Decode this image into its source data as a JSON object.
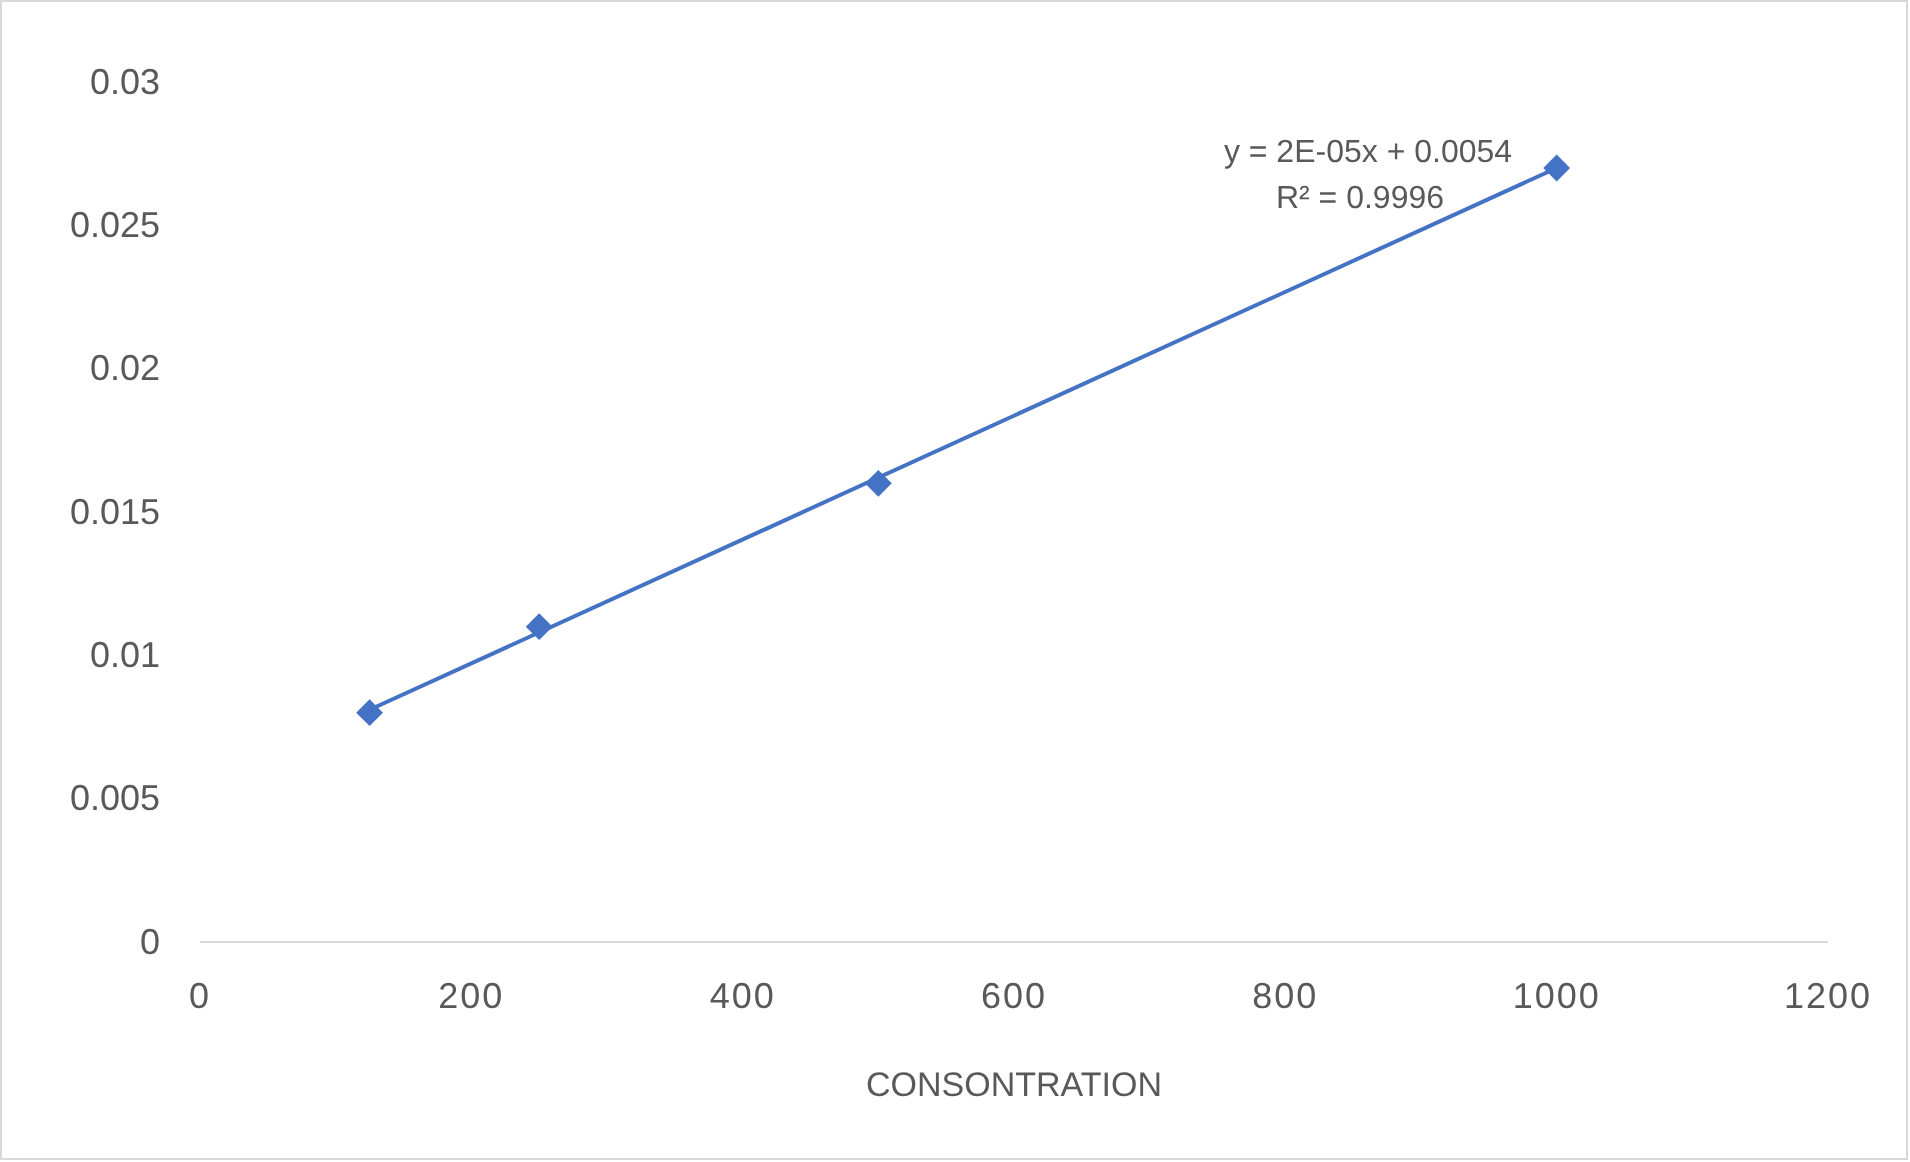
{
  "chart_data": {
    "type": "scatter",
    "xlabel": "CONSONTRATION",
    "x": [
      125,
      250,
      500,
      1000
    ],
    "series": [
      {
        "color": "#4472c4",
        "marker": "diamond",
        "values": [
          0.008,
          0.011,
          0.016,
          0.027
        ]
      },
      {
        "type": "line",
        "color": "#4472c4",
        "x": [
          125,
          1000
        ],
        "values": [
          0.0081,
          0.027
        ]
      }
    ],
    "xlim": [
      0,
      1200
    ],
    "xticks": [
      0,
      200,
      400,
      600,
      800,
      1000,
      1200
    ],
    "ylim": [
      0,
      0.03
    ],
    "yticks": [
      0,
      0.005,
      0.01,
      0.015,
      0.02,
      0.025,
      0.03
    ],
    "grid": false,
    "annotations": [
      "y = 2E-05x + 0.0054",
      "R² = 0.9996"
    ]
  }
}
